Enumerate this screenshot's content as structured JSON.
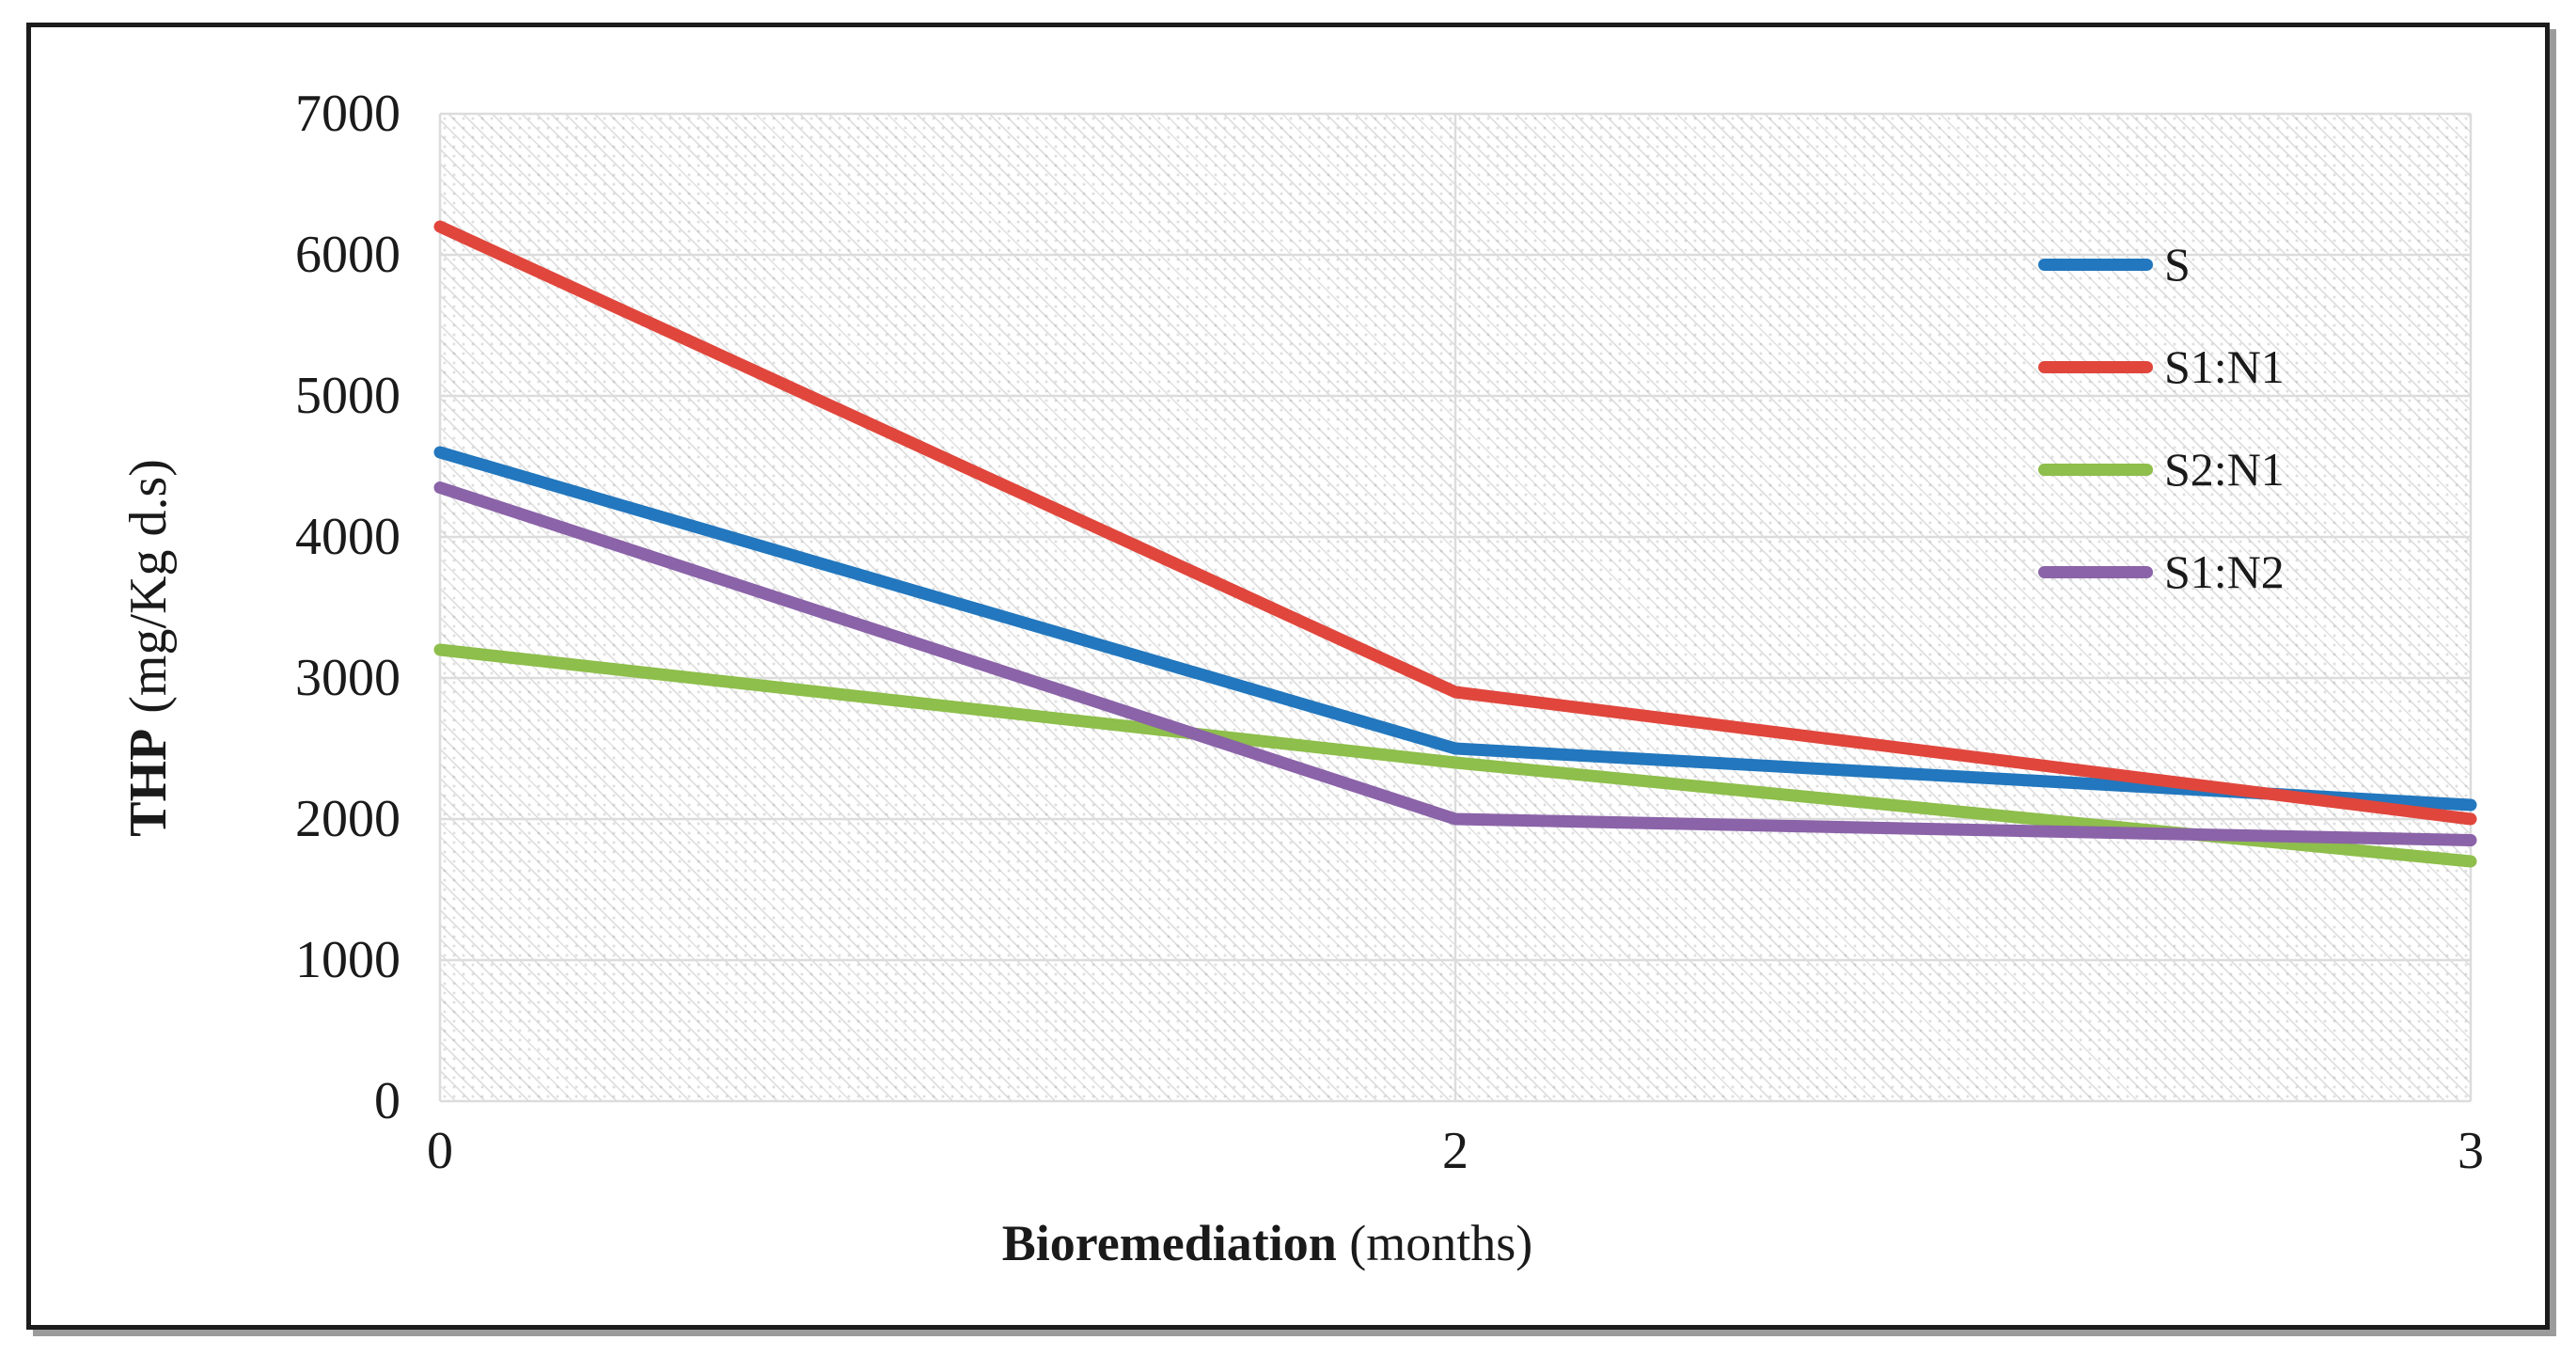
{
  "figure": {
    "frame_border_color": "#1c1c1c",
    "frame_shadow_color": "#9b9b9b",
    "plot_fill_pattern": "light diagonal dotted hatch",
    "gridline_color": "#dcdcdc"
  },
  "legend": {
    "position": "inside-right",
    "items": [
      "S",
      "S1:N1",
      "S2:N1",
      "S1:N2"
    ]
  },
  "chart_data": {
    "type": "line",
    "title": "",
    "categories": [
      "0",
      "2",
      "3"
    ],
    "x_axis_note": "category axis - 0, 2, 3 equally spaced",
    "series": [
      {
        "name": "S",
        "color": "#2277BE",
        "values": [
          4600,
          2500,
          2100
        ]
      },
      {
        "name": "S1:N1",
        "color": "#E0463C",
        "values": [
          6200,
          2900,
          2000
        ]
      },
      {
        "name": "S2:N1",
        "color": "#8EBE4B",
        "values": [
          3200,
          2400,
          1700
        ]
      },
      {
        "name": "S1:N2",
        "color": "#8A63A8",
        "values": [
          4350,
          2000,
          1850
        ]
      }
    ],
    "xlabel_bold": "Bioremediation",
    "xlabel_normal": "(months)",
    "ylabel_bold": "THP",
    "ylabel_normal": "(mg/Kg d.s)",
    "ylim": [
      0,
      7000
    ],
    "yticks": [
      0,
      1000,
      2000,
      3000,
      4000,
      5000,
      6000,
      7000
    ],
    "grid": true,
    "legend_position": "inside-right"
  }
}
